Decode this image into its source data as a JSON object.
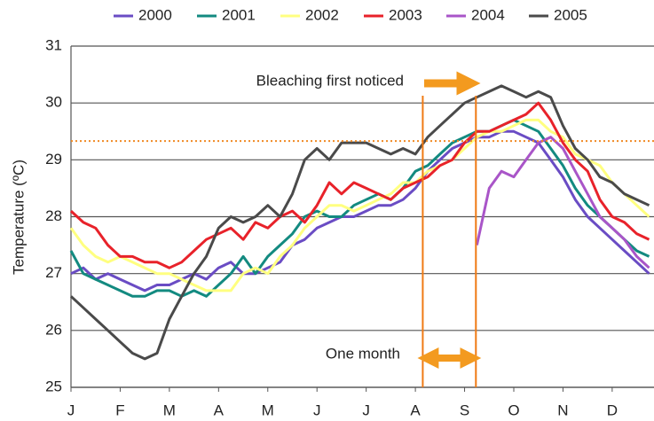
{
  "chart_data": {
    "type": "line",
    "y_label": "Temperature (ºC)",
    "x": [
      0,
      0.25,
      0.5,
      0.75,
      1,
      1.25,
      1.5,
      1.75,
      2,
      2.25,
      2.5,
      2.75,
      3,
      3.25,
      3.5,
      3.75,
      4,
      4.25,
      4.5,
      4.75,
      5,
      5.25,
      5.5,
      5.75,
      6,
      6.25,
      6.5,
      6.75,
      7,
      7.25,
      7.5,
      7.75,
      8,
      8.25,
      8.5,
      8.75,
      9,
      9.25,
      9.5,
      9.75,
      10,
      10.25,
      10.5,
      10.75,
      11,
      11.25,
      11.5,
      11.75
    ],
    "xlim": [
      0,
      11.85
    ],
    "xticks": [
      {
        "value": 0,
        "label": "J"
      },
      {
        "value": 1,
        "label": "F"
      },
      {
        "value": 2,
        "label": "M"
      },
      {
        "value": 3,
        "label": "A"
      },
      {
        "value": 4,
        "label": "M"
      },
      {
        "value": 5,
        "label": "J"
      },
      {
        "value": 6,
        "label": "J"
      },
      {
        "value": 7,
        "label": "A"
      },
      {
        "value": 8,
        "label": "S"
      },
      {
        "value": 9,
        "label": "O"
      },
      {
        "value": 10,
        "label": "N"
      },
      {
        "value": 11,
        "label": "D"
      }
    ],
    "ylim": [
      25,
      31
    ],
    "yticks": [
      25,
      26,
      27,
      28,
      29,
      30,
      31
    ],
    "grid": true,
    "series": [
      {
        "name": "2000",
        "color": "#6a4cc4",
        "values": [
          27.0,
          27.1,
          26.9,
          27.0,
          26.9,
          26.8,
          26.7,
          26.8,
          26.8,
          26.9,
          27.0,
          26.9,
          27.1,
          27.2,
          27.0,
          27.0,
          27.1,
          27.2,
          27.5,
          27.6,
          27.8,
          27.9,
          28.0,
          28.0,
          28.1,
          28.2,
          28.2,
          28.3,
          28.5,
          28.8,
          29.0,
          29.2,
          29.3,
          29.4,
          29.4,
          29.5,
          29.5,
          29.4,
          29.3,
          29.0,
          28.7,
          28.3,
          28.0,
          27.8,
          27.6,
          27.4,
          27.2,
          27.0
        ]
      },
      {
        "name": "2001",
        "color": "#138a80",
        "values": [
          27.4,
          27.0,
          26.9,
          26.8,
          26.7,
          26.6,
          26.6,
          26.7,
          26.7,
          26.6,
          26.7,
          26.6,
          26.8,
          27.0,
          27.3,
          27.0,
          27.3,
          27.5,
          27.7,
          28.0,
          28.1,
          28.0,
          28.0,
          28.2,
          28.3,
          28.4,
          28.3,
          28.5,
          28.8,
          28.9,
          29.1,
          29.3,
          29.4,
          29.5,
          29.5,
          29.6,
          29.7,
          29.6,
          29.5,
          29.2,
          28.9,
          28.5,
          28.2,
          28.0,
          27.8,
          27.6,
          27.4,
          27.3
        ]
      },
      {
        "name": "2002",
        "color": "#ffff80",
        "values": [
          27.8,
          27.5,
          27.3,
          27.2,
          27.3,
          27.2,
          27.1,
          27.0,
          27.0,
          26.9,
          26.8,
          26.7,
          26.7,
          26.7,
          27.0,
          27.1,
          27.0,
          27.3,
          27.5,
          27.8,
          28.0,
          28.2,
          28.2,
          28.1,
          28.2,
          28.3,
          28.4,
          28.6,
          28.6,
          28.8,
          28.9,
          29.0,
          29.2,
          29.4,
          29.5,
          29.5,
          29.6,
          29.7,
          29.7,
          29.5,
          29.4,
          29.1,
          29.0,
          28.9,
          28.6,
          28.4,
          28.2,
          28.0
        ]
      },
      {
        "name": "2003",
        "color": "#e8222a",
        "values": [
          28.1,
          27.9,
          27.8,
          27.5,
          27.3,
          27.3,
          27.2,
          27.2,
          27.1,
          27.2,
          27.4,
          27.6,
          27.7,
          27.8,
          27.6,
          27.9,
          27.8,
          28.0,
          28.1,
          27.9,
          28.2,
          28.6,
          28.4,
          28.6,
          28.5,
          28.4,
          28.3,
          28.5,
          28.6,
          28.7,
          28.9,
          29.0,
          29.3,
          29.5,
          29.5,
          29.6,
          29.7,
          29.8,
          30.0,
          29.7,
          29.3,
          29.0,
          28.8,
          28.3,
          28.0,
          27.9,
          27.7,
          27.6
        ]
      },
      {
        "name": "2004",
        "color": "#a955c8",
        "values": [
          null,
          null,
          null,
          null,
          null,
          null,
          null,
          null,
          null,
          null,
          null,
          null,
          null,
          null,
          null,
          null,
          null,
          null,
          null,
          null,
          null,
          null,
          null,
          null,
          null,
          null,
          null,
          null,
          null,
          null,
          null,
          null,
          null,
          27.5,
          28.5,
          28.8,
          28.7,
          29.0,
          29.3,
          29.4,
          29.2,
          28.8,
          28.4,
          28.0,
          27.8,
          27.6,
          27.3,
          27.1
        ]
      },
      {
        "name": "2005",
        "color": "#4a4a4a",
        "values": [
          26.6,
          26.4,
          26.2,
          26.0,
          25.8,
          25.6,
          25.5,
          25.6,
          26.2,
          26.6,
          27.0,
          27.3,
          27.8,
          28.0,
          27.9,
          28.0,
          28.2,
          28.0,
          28.4,
          29.0,
          29.2,
          29.0,
          29.3,
          29.3,
          29.3,
          29.2,
          29.1,
          29.2,
          29.1,
          29.4,
          29.6,
          29.8,
          30.0,
          30.1,
          30.2,
          30.3,
          30.2,
          30.1,
          30.2,
          30.1,
          29.6,
          29.2,
          29.0,
          28.7,
          28.6,
          28.4,
          28.3,
          28.2
        ]
      }
    ],
    "threshold": 29.33,
    "vertical_markers": [
      7.15,
      8.23
    ],
    "annotations": [
      "Bleaching first noticed",
      "One month"
    ]
  }
}
